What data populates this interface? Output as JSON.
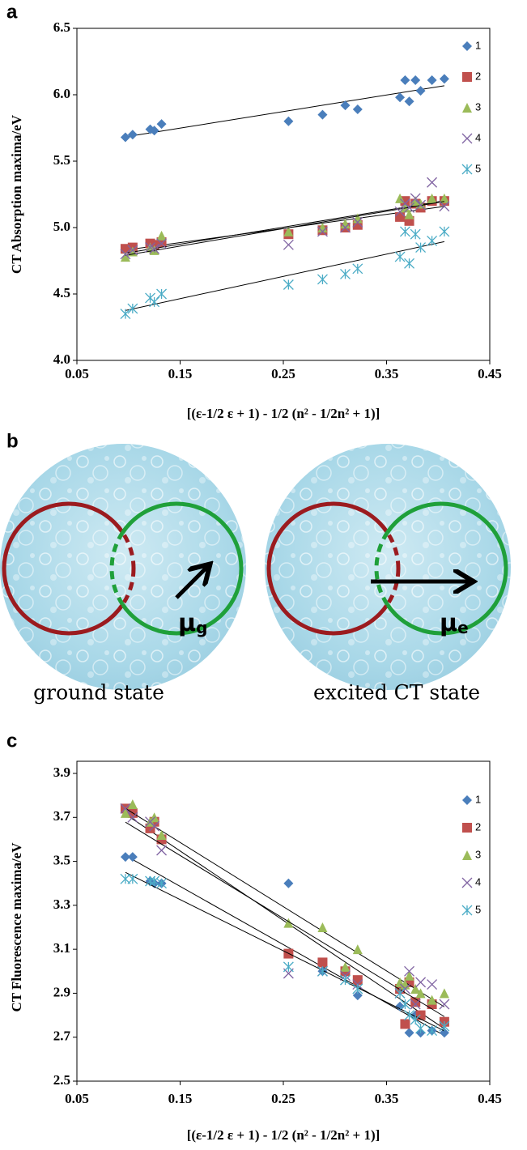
{
  "panel_labels": [
    "a",
    "b",
    "c"
  ],
  "chart_data": [
    {
      "type": "scatter",
      "y_label": "CT Absorption  maxima/eV",
      "x_label": "[(ε-1/2 ε + 1) - 1/2 (n² - 1/2n² + 1)]",
      "xlim": [
        0.05,
        0.45
      ],
      "xticks": [
        0.05,
        0.15,
        0.25,
        0.35,
        0.45
      ],
      "ylim": [
        4.0,
        6.5
      ],
      "yticks": [
        {
          "value": 4.0,
          "label": "4.0"
        },
        4.5,
        {
          "value": 5.0,
          "label": "5.0"
        },
        5.5,
        {
          "value": 6.0,
          "label": "6.0"
        },
        6.5
      ],
      "grid": false,
      "trendlines": true,
      "legend": "top-right",
      "x": [
        0.097,
        0.104,
        0.121,
        0.125,
        0.132,
        0.255,
        0.288,
        0.31,
        0.322,
        0.363,
        0.368,
        0.372,
        0.378,
        0.383,
        0.394,
        0.406
      ],
      "series": [
        {
          "name": "1",
          "marker": "diamond",
          "color": "#4a7ebb",
          "values": [
            5.68,
            5.7,
            5.74,
            5.73,
            5.78,
            5.8,
            5.85,
            5.92,
            5.89,
            5.98,
            6.11,
            5.95,
            6.11,
            6.03,
            6.11,
            6.12
          ]
        },
        {
          "name": "2",
          "marker": "square",
          "color": "#c0504d",
          "values": [
            4.84,
            4.85,
            4.88,
            4.87,
            4.89,
            4.95,
            4.98,
            5.0,
            5.02,
            5.08,
            5.2,
            5.05,
            5.18,
            5.15,
            5.2,
            5.2
          ]
        },
        {
          "name": "3",
          "marker": "triangle",
          "color": "#9bbb59",
          "values": [
            4.78,
            4.82,
            4.85,
            4.83,
            4.94,
            4.97,
            5.0,
            5.03,
            5.07,
            5.22,
            5.15,
            5.1,
            5.2,
            5.18,
            5.22,
            5.22
          ]
        },
        {
          "name": "4",
          "marker": "x",
          "color": "#8064a2",
          "values": [
            4.8,
            4.83,
            4.85,
            4.84,
            4.88,
            4.87,
            4.97,
            5.0,
            5.04,
            5.12,
            5.18,
            5.15,
            5.22,
            5.17,
            5.34,
            5.16
          ]
        },
        {
          "name": "5",
          "marker": "asterisk",
          "color": "#4bacc6",
          "values": [
            4.35,
            4.39,
            4.47,
            4.44,
            4.5,
            4.57,
            4.61,
            4.65,
            4.69,
            4.78,
            4.97,
            4.73,
            4.95,
            4.85,
            4.9,
            4.97
          ]
        }
      ]
    },
    {
      "type": "scatter",
      "y_label": "CT Fluorescence maxima/eV",
      "x_label": "[(ε-1/2 ε + 1) - 1/2 (n² - 1/2n² + 1)]",
      "xlim": [
        0.05,
        0.45
      ],
      "xticks": [
        0.05,
        0.15,
        0.25,
        0.35,
        0.45
      ],
      "ylim": [
        2.5,
        3.9
      ],
      "yticks": [
        2.5,
        2.7,
        2.9,
        3.1,
        3.3,
        3.5,
        3.7,
        3.9
      ],
      "grid": false,
      "trendlines": true,
      "legend": "top-right",
      "x": [
        0.097,
        0.104,
        0.121,
        0.125,
        0.132,
        0.255,
        0.288,
        0.31,
        0.322,
        0.363,
        0.368,
        0.372,
        0.378,
        0.383,
        0.394,
        0.406
      ],
      "series": [
        {
          "name": "1",
          "marker": "diamond",
          "color": "#4a7ebb",
          "values": [
            3.52,
            3.52,
            3.41,
            3.4,
            3.4,
            3.4,
            3.0,
            3.0,
            2.89,
            2.84,
            2.76,
            2.72,
            2.8,
            2.72,
            2.73,
            2.72
          ]
        },
        {
          "name": "2",
          "marker": "square",
          "color": "#c0504d",
          "values": [
            3.74,
            3.72,
            3.65,
            3.68,
            3.6,
            3.08,
            3.04,
            3.0,
            2.96,
            2.92,
            2.76,
            2.95,
            2.86,
            2.8,
            2.85,
            2.77
          ]
        },
        {
          "name": "3",
          "marker": "triangle",
          "color": "#9bbb59",
          "values": [
            3.72,
            3.76,
            3.68,
            3.7,
            3.62,
            3.22,
            3.2,
            3.02,
            3.1,
            2.95,
            2.94,
            2.98,
            2.92,
            2.9,
            2.87,
            2.9
          ]
        },
        {
          "name": "4",
          "marker": "x",
          "color": "#8064a2",
          "values": [
            3.74,
            3.7,
            3.68,
            3.66,
            3.55,
            2.99,
            3.0,
            2.98,
            2.94,
            2.9,
            2.92,
            3.0,
            2.85,
            2.95,
            2.94,
            2.85
          ]
        },
        {
          "name": "5",
          "marker": "asterisk",
          "color": "#4bacc6",
          "values": [
            3.42,
            3.42,
            3.41,
            3.41,
            3.4,
            3.02,
            3.0,
            2.96,
            2.92,
            2.9,
            2.85,
            2.8,
            2.78,
            2.74,
            2.73,
            2.75
          ]
        }
      ]
    }
  ],
  "diagram": {
    "ground": {
      "symbol": "μ",
      "subscript": "g",
      "caption": "ground state"
    },
    "excited": {
      "symbol": "μ",
      "subscript": "e",
      "caption": "excited CT state"
    }
  }
}
